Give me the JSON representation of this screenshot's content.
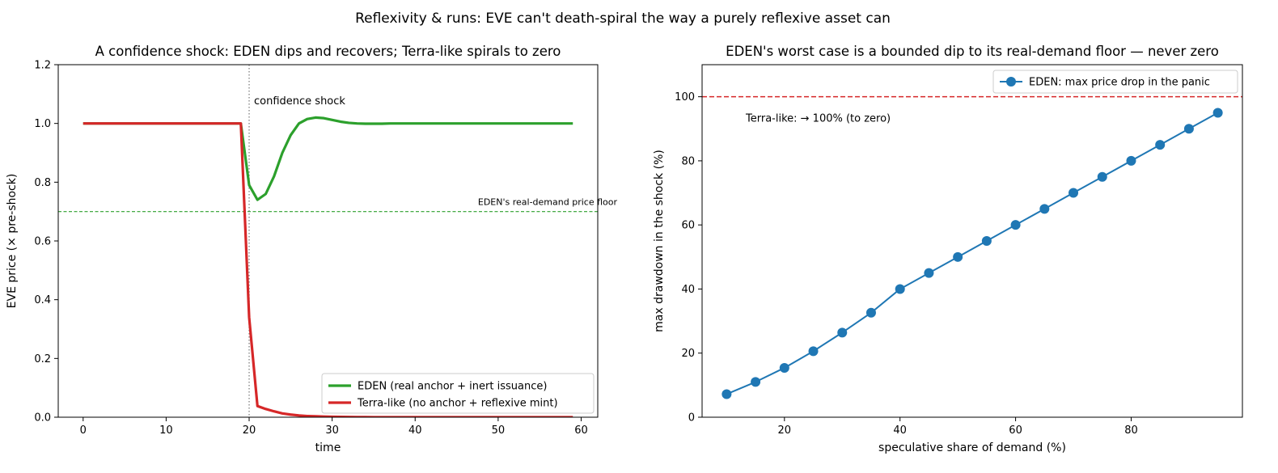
{
  "suptitle": "Reflexivity & runs: EVE can't death-spiral the way a purely reflexive asset can",
  "colors": {
    "eden": "#2ca02c",
    "terra": "#d62728",
    "blue": "#1f77b4",
    "shock_line": "#808080"
  },
  "chart_data": [
    {
      "type": "line",
      "title": "A confidence shock: EDEN dips and recovers; Terra-like spirals to zero",
      "xlabel": "time",
      "ylabel": "EVE price (× pre-shock)",
      "xlim": [
        -3,
        62
      ],
      "ylim": [
        0,
        1.2
      ],
      "xticks": [
        0,
        10,
        20,
        30,
        40,
        50,
        60
      ],
      "yticks": [
        0.0,
        0.2,
        0.4,
        0.6,
        0.8,
        1.0,
        1.2
      ],
      "grid": false,
      "legend_position": "lower right",
      "x": [
        0,
        1,
        2,
        3,
        4,
        5,
        6,
        7,
        8,
        9,
        10,
        11,
        12,
        13,
        14,
        15,
        16,
        17,
        18,
        19,
        20,
        21,
        22,
        23,
        24,
        25,
        26,
        27,
        28,
        29,
        30,
        31,
        32,
        33,
        34,
        35,
        36,
        37,
        38,
        39,
        40,
        41,
        42,
        43,
        44,
        45,
        46,
        47,
        48,
        49,
        50,
        51,
        52,
        53,
        54,
        55,
        56,
        57,
        58,
        59
      ],
      "series": [
        {
          "name": "EDEN (real anchor + inert issuance)",
          "color": "#2ca02c",
          "values": [
            1,
            1,
            1,
            1,
            1,
            1,
            1,
            1,
            1,
            1,
            1,
            1,
            1,
            1,
            1,
            1,
            1,
            1,
            1,
            1,
            0.79,
            0.74,
            0.76,
            0.82,
            0.9,
            0.96,
            1.0,
            1.015,
            1.02,
            1.018,
            1.012,
            1.006,
            1.002,
            1.0,
            0.999,
            0.999,
            0.999,
            1,
            1,
            1,
            1,
            1,
            1,
            1,
            1,
            1,
            1,
            1,
            1,
            1,
            1,
            1,
            1,
            1,
            1,
            1,
            1,
            1,
            1,
            1
          ]
        },
        {
          "name": "Terra-like (no anchor + reflexive mint)",
          "color": "#d62728",
          "values": [
            1,
            1,
            1,
            1,
            1,
            1,
            1,
            1,
            1,
            1,
            1,
            1,
            1,
            1,
            1,
            1,
            1,
            1,
            1,
            1,
            0.34,
            0.038,
            0.028,
            0.02,
            0.013,
            0.009,
            0.006,
            0.004,
            0.003,
            0.002,
            0.0015,
            0.001,
            0.0008,
            0.0005,
            0.0003,
            0.0002,
            0.0001,
            0,
            0,
            0,
            0,
            0,
            0,
            0,
            0,
            0,
            0,
            0,
            0,
            0,
            0,
            0,
            0,
            0,
            0,
            0,
            0,
            0,
            0,
            0
          ]
        }
      ],
      "hlines": [
        {
          "y": 0.7,
          "label": "EDEN's real-demand price floor",
          "color": "#2ca02c"
        }
      ],
      "vlines": [
        {
          "x": 20,
          "label": "confidence shock",
          "color": "#808080"
        }
      ]
    },
    {
      "type": "line",
      "title": "EDEN's worst case is a bounded dip to its real-demand floor — never zero",
      "xlabel": "speculative share of demand (%)",
      "ylabel": "max drawdown in the shock (%)",
      "xlim": [
        5.75,
        99.25
      ],
      "ylim": [
        0,
        110
      ],
      "xticks": [
        20,
        40,
        60,
        80
      ],
      "yticks": [
        0,
        20,
        40,
        60,
        80,
        100
      ],
      "grid": false,
      "legend_position": "upper right",
      "series": [
        {
          "name": "EDEN: max price drop in the panic",
          "color": "#1f77b4",
          "marker": "circle",
          "x": [
            10,
            15,
            20,
            25,
            30,
            35,
            40,
            45,
            50,
            55,
            60,
            65,
            70,
            75,
            80,
            85,
            90,
            95
          ],
          "values": [
            7.2,
            11,
            15.4,
            20.6,
            26.4,
            32.6,
            40,
            45,
            50,
            55,
            60,
            65,
            70,
            75,
            80,
            85,
            90,
            95
          ]
        }
      ],
      "hlines": [
        {
          "y": 100,
          "label": "Terra-like: → 100% (to zero)",
          "color": "#d62728"
        }
      ]
    }
  ]
}
